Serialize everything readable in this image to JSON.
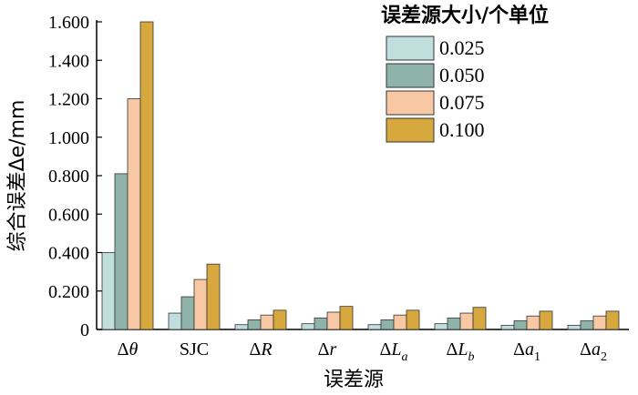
{
  "chart_data": {
    "type": "bar",
    "title": "",
    "xlabel": "误差源",
    "ylabel": "综合误差Δe/mm",
    "ylim": [
      0,
      1.6
    ],
    "yticks": [
      {
        "value": 0,
        "label": "0"
      },
      {
        "value": 0.2,
        "label": "0.200"
      },
      {
        "value": 0.4,
        "label": "0.400"
      },
      {
        "value": 0.6,
        "label": "0.600"
      },
      {
        "value": 0.8,
        "label": "0.800"
      },
      {
        "value": 1.0,
        "label": "1.000"
      },
      {
        "value": 1.2,
        "label": "1.200"
      },
      {
        "value": 1.4,
        "label": "1.400"
      },
      {
        "value": 1.6,
        "label": "1.600"
      }
    ],
    "categories": [
      {
        "base": "Δ",
        "sym": "θ",
        "sub": ""
      },
      {
        "base": "SJC",
        "sym": "",
        "sub": ""
      },
      {
        "base": "Δ",
        "sym": "R",
        "sub": ""
      },
      {
        "base": "Δ",
        "sym": "r",
        "sub": ""
      },
      {
        "base": "Δ",
        "sym": "L",
        "sub": "a"
      },
      {
        "base": "Δ",
        "sym": "L",
        "sub": "b"
      },
      {
        "base": "Δ",
        "sym": "a",
        "sub": "1"
      },
      {
        "base": "Δ",
        "sym": "a",
        "sub": "2"
      }
    ],
    "legend_title": "误差源大小/个单位",
    "legend_position": "top-right",
    "series": [
      {
        "name": "0.025",
        "color": "#c0dedb",
        "values": [
          0.4,
          0.085,
          0.025,
          0.03,
          0.025,
          0.03,
          0.022,
          0.022
        ]
      },
      {
        "name": "0.050",
        "color": "#8fb3a9",
        "values": [
          0.81,
          0.17,
          0.05,
          0.06,
          0.05,
          0.06,
          0.045,
          0.045
        ]
      },
      {
        "name": "0.075",
        "color": "#f7c8a3",
        "values": [
          1.2,
          0.26,
          0.075,
          0.09,
          0.075,
          0.085,
          0.07,
          0.07
        ]
      },
      {
        "name": "0.100",
        "color": "#d6a83e",
        "values": [
          1.6,
          0.34,
          0.1,
          0.12,
          0.1,
          0.115,
          0.095,
          0.095
        ]
      }
    ]
  }
}
